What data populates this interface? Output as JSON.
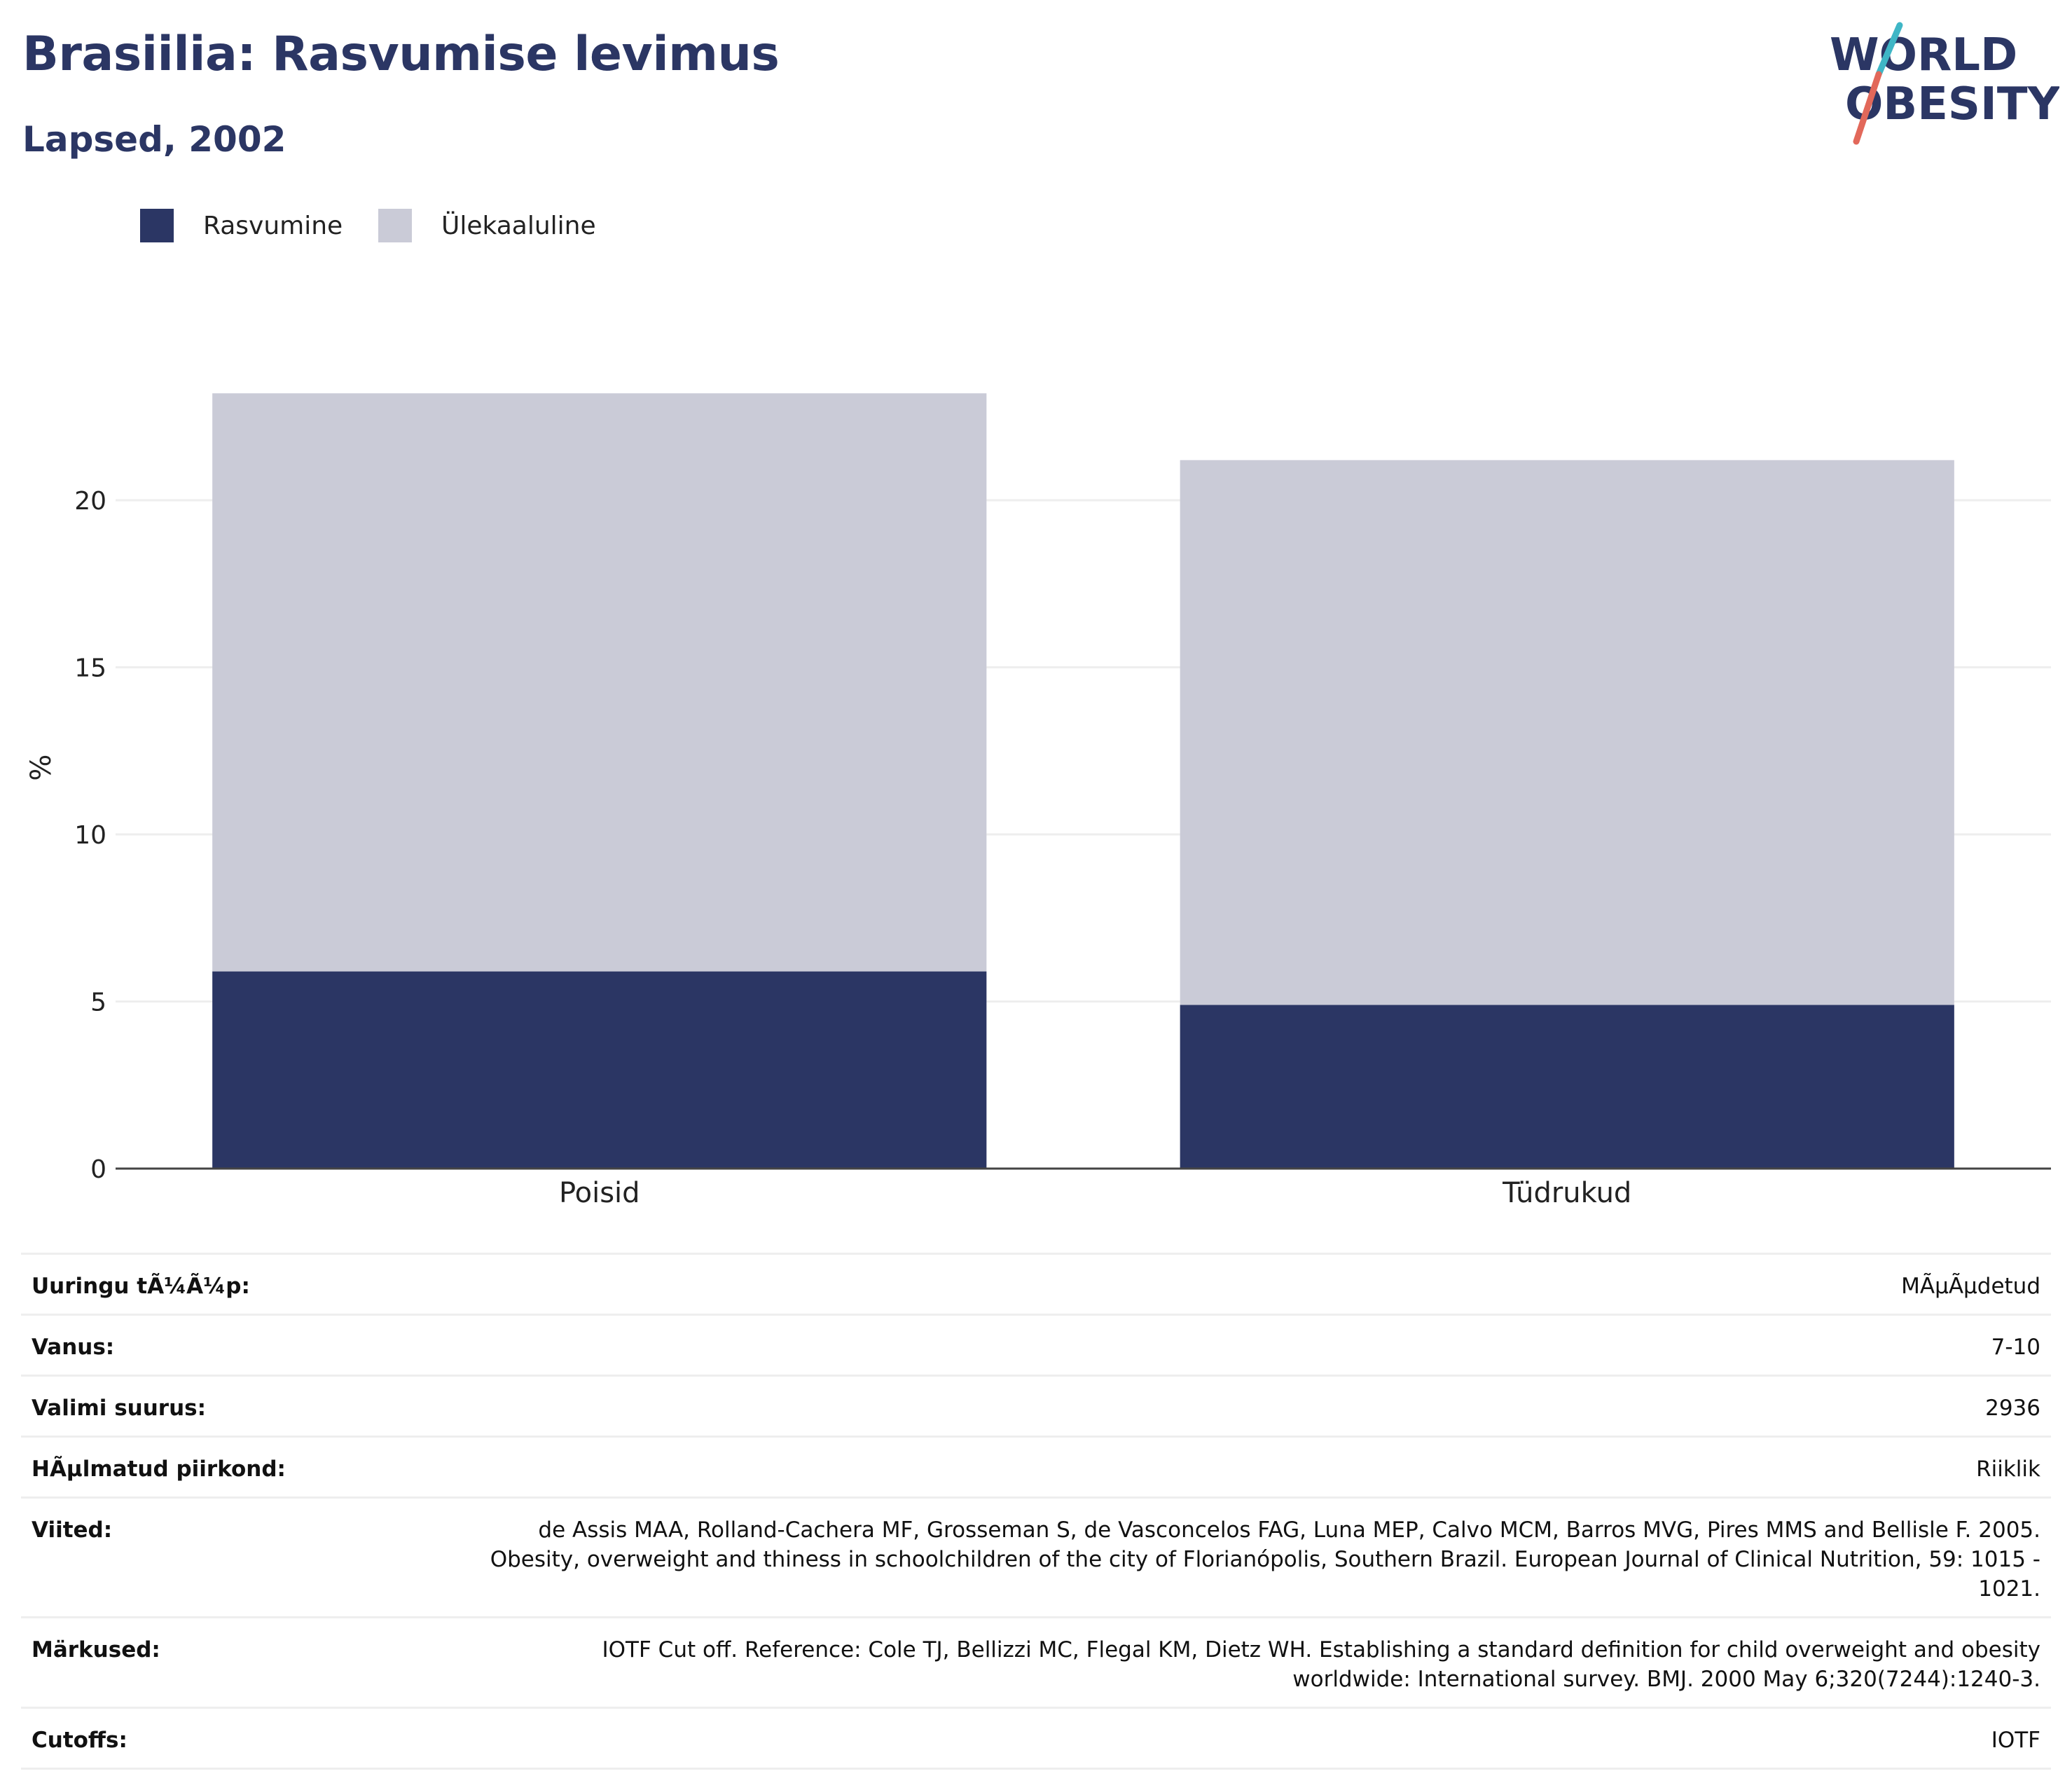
{
  "header": {
    "title": "Brasiilia: Rasvumise levimus",
    "subtitle": "Lapsed, 2002",
    "logo_text": [
      "WORLD",
      "OBESITY"
    ]
  },
  "colors": {
    "title": "#2b3664",
    "obesity": "#2b3664",
    "overweight": "#cacbd7",
    "logo_teal": "#3fb6c6",
    "logo_coral": "#e2685a",
    "gridline": "#eeeeee",
    "axis": "#444444"
  },
  "legend": {
    "placement": "top-left",
    "items": [
      {
        "label": "Rasvumine",
        "color": "#2b3664"
      },
      {
        "label": "Ülekaaluline",
        "color": "#cacbd7"
      }
    ]
  },
  "chart_data": {
    "type": "bar",
    "stacked": true,
    "categories": [
      "Poisid",
      "Tüdrukud"
    ],
    "series": [
      {
        "name": "Rasvumine",
        "values": [
          5.9,
          4.9
        ]
      },
      {
        "name": "Ülekaaluline",
        "values": [
          17.3,
          16.3
        ]
      }
    ],
    "totals": [
      23.2,
      21.2
    ],
    "ylabel": "%",
    "xlabel": "",
    "ylim": [
      0,
      24
    ],
    "yticks": [
      0,
      5,
      10,
      15,
      20
    ],
    "grid": true
  },
  "info_table": [
    {
      "label": "Uuringu tÃ¼Ã¼p:",
      "value": "MÃµÃµdetud"
    },
    {
      "label": "Vanus:",
      "value": "7-10"
    },
    {
      "label": "Valimi suurus:",
      "value": "2936"
    },
    {
      "label": "HÃµlmatud piirkond:",
      "value": "Riiklik"
    },
    {
      "label": "Viited:",
      "value": "de Assis MAA, Rolland-Cachera MF, Grosseman S, de Vasconcelos FAG, Luna MEP, Calvo MCM, Barros MVG, Pires MMS and Bellisle F. 2005. Obesity, overweight and thiness in schoolchildren of the city of Florianópolis, Southern Brazil. European Journal of Clinical Nutrition, 59: 1015 - 1021."
    },
    {
      "label": "Märkused:",
      "value": "IOTF Cut off. Reference: Cole TJ, Bellizzi MC, Flegal KM, Dietz WH. Establishing a standard definition for child overweight and obesity worldwide: International survey. BMJ. 2000 May 6;320(7244):1240-3."
    },
    {
      "label": "Cutoffs:",
      "value": "IOTF"
    }
  ]
}
